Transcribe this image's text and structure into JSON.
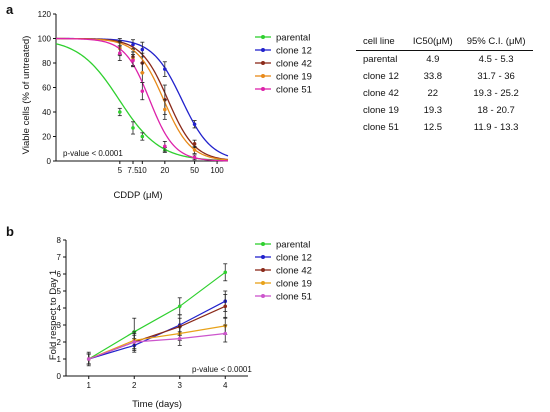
{
  "panels": {
    "a": {
      "letter": "a"
    },
    "b": {
      "letter": "b"
    }
  },
  "chart_data": [
    {
      "type": "line",
      "panel": "a",
      "xlabel": "CDDP (μM)",
      "ylabel": "Viable cells (% of untreated)",
      "xscale": "log",
      "xlim": [
        0.7,
        140
      ],
      "ylim": [
        0,
        120
      ],
      "xticks": [
        5,
        7.5,
        10,
        20,
        50,
        100
      ],
      "xtick_labels": [
        "5",
        "7.5",
        "10",
        "20",
        "50",
        "100"
      ],
      "yticks": [
        0,
        20,
        40,
        60,
        80,
        100,
        120
      ],
      "annotation": "p-value < 0.0001",
      "legend_position": "right",
      "series": [
        {
          "name": "parental",
          "color": "#2fd02f",
          "ic50": 4.9,
          "hill": 1.6,
          "x": [
            5,
            7.5,
            10,
            20
          ],
          "y": [
            40,
            27,
            20,
            9
          ],
          "err": [
            3,
            5,
            3,
            2
          ]
        },
        {
          "name": "clone 12",
          "color": "#2222cc",
          "ic50": 33.8,
          "hill": 2.2,
          "x": [
            5,
            7.5,
            10,
            20,
            50
          ],
          "y": [
            97,
            95,
            91,
            75,
            30
          ],
          "err": [
            3,
            4,
            6,
            6,
            3
          ]
        },
        {
          "name": "clone 42",
          "color": "#8b2a1a",
          "ic50": 22,
          "hill": 2.4,
          "x": [
            5,
            7.5,
            10,
            20,
            50
          ],
          "y": [
            92,
            85,
            80,
            50,
            14
          ],
          "err": [
            6,
            7,
            8,
            12,
            3
          ]
        },
        {
          "name": "clone 19",
          "color": "#e88a1a",
          "ic50": 19.3,
          "hill": 2.4,
          "x": [
            5,
            7.5,
            10,
            20,
            50
          ],
          "y": [
            92,
            83,
            72,
            42,
            9
          ],
          "err": [
            5,
            6,
            8,
            8,
            3
          ]
        },
        {
          "name": "clone 51",
          "color": "#dd22aa",
          "ic50": 12.5,
          "hill": 2.6,
          "x": [
            5,
            7.5,
            10,
            20,
            50
          ],
          "y": [
            88,
            82,
            57,
            12,
            3
          ],
          "err": [
            6,
            5,
            7,
            4,
            2
          ]
        }
      ]
    },
    {
      "type": "table",
      "panel": "a",
      "columns": [
        "cell line",
        "IC50(μM)",
        "95% C.I. (μM)"
      ],
      "rows": [
        [
          "parental",
          "4.9",
          "4.5 - 5.3"
        ],
        [
          "clone 12",
          "33.8",
          "31.7 - 36"
        ],
        [
          "clone 42",
          "22",
          "19.3 - 25.2"
        ],
        [
          "clone 19",
          "19.3",
          "18 - 20.7"
        ],
        [
          "clone 51",
          "12.5",
          "11.9 - 13.3"
        ]
      ]
    },
    {
      "type": "line",
      "panel": "b",
      "xlabel": "Time (days)",
      "ylabel": "Fold respect to Day 1",
      "xlim": [
        0.5,
        4.5
      ],
      "ylim": [
        0,
        8
      ],
      "xticks": [
        1,
        2,
        3,
        4
      ],
      "yticks": [
        0,
        1,
        2,
        3,
        4,
        5,
        6,
        7,
        8
      ],
      "annotation": "p-value < 0.0001",
      "legend_position": "right",
      "series": [
        {
          "name": "parental",
          "color": "#2fd02f",
          "x": [
            1,
            2,
            3,
            4
          ],
          "y": [
            1.0,
            2.6,
            4.1,
            6.1
          ],
          "err": [
            0.4,
            0.8,
            0.5,
            0.5
          ]
        },
        {
          "name": "clone 12",
          "color": "#2222cc",
          "x": [
            1,
            2,
            3,
            4
          ],
          "y": [
            1.0,
            1.8,
            3.0,
            4.4
          ],
          "err": [
            0.3,
            0.4,
            0.6,
            0.6
          ]
        },
        {
          "name": "clone 42",
          "color": "#8b2a1a",
          "x": [
            1,
            2,
            3,
            4
          ],
          "y": [
            1.0,
            2.0,
            2.9,
            4.1
          ],
          "err": [
            0.3,
            0.4,
            0.5,
            0.7
          ]
        },
        {
          "name": "clone 19",
          "color": "#e8a21a",
          "x": [
            1,
            2,
            3,
            4
          ],
          "y": [
            1.0,
            2.1,
            2.5,
            2.95
          ],
          "err": [
            0.3,
            0.5,
            0.4,
            0.5
          ]
        },
        {
          "name": "clone 51",
          "color": "#cc55cc",
          "x": [
            1,
            2,
            3,
            4
          ],
          "y": [
            1.0,
            2.0,
            2.2,
            2.5
          ],
          "err": [
            0.3,
            0.5,
            0.4,
            0.5
          ]
        }
      ]
    }
  ]
}
